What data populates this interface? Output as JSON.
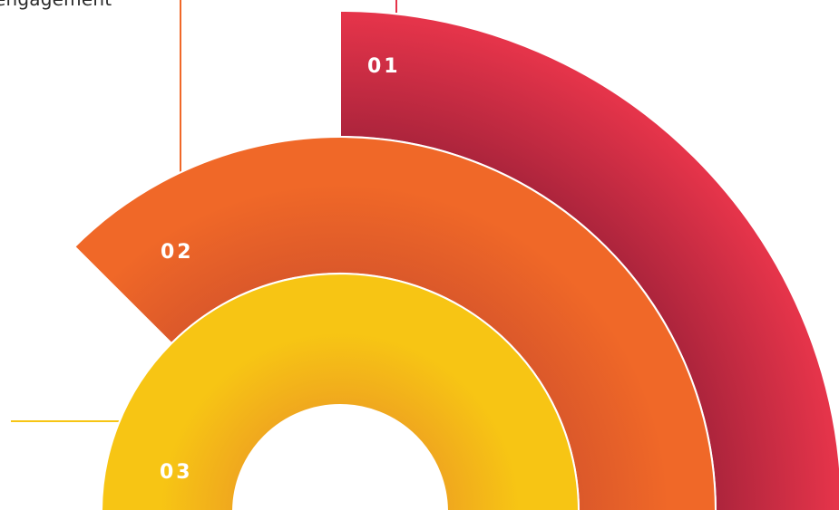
{
  "caption": "engagement",
  "segments": [
    {
      "number": "01",
      "color": "#e5344a",
      "shade": "#a4223a"
    },
    {
      "number": "02",
      "color": "#f06828",
      "shade": "#d8562a"
    },
    {
      "number": "03",
      "color": "#f7c514",
      "shade": "#f0a81e"
    }
  ]
}
